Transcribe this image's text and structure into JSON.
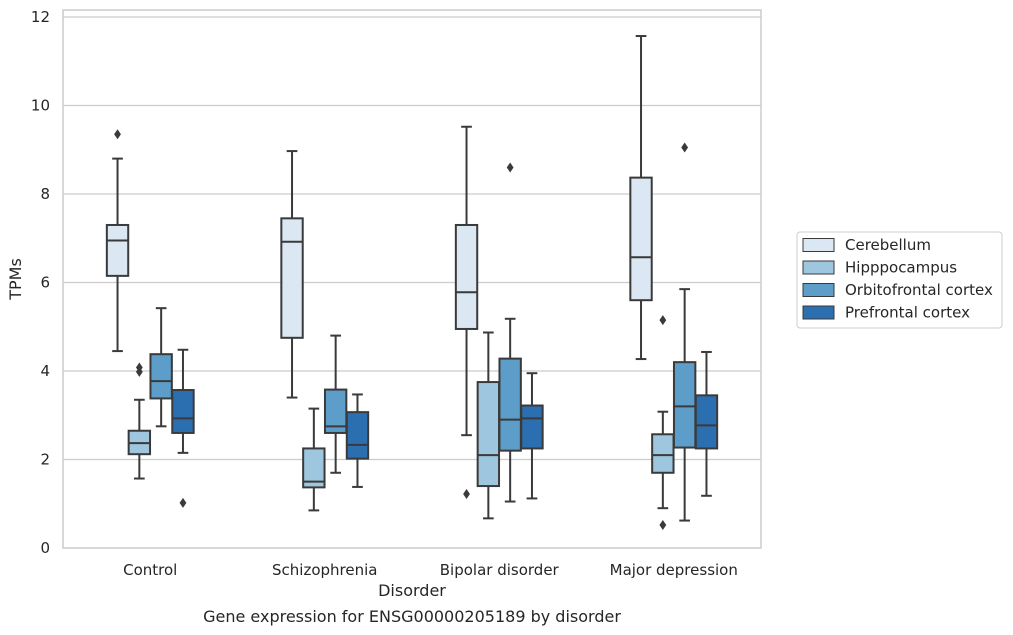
{
  "chart_data": {
    "type": "box",
    "title": "",
    "caption": "Gene expression for ENSG00000205189 by disorder",
    "xlabel": "Disorder",
    "ylabel": "TPMs",
    "ylim": [
      0,
      12.2
    ],
    "yticks": [
      0,
      2,
      4,
      6,
      8,
      10,
      12
    ],
    "grid": true,
    "legend_position": "right",
    "categories": [
      "Control",
      "Schizophrenia",
      "Bipolar disorder",
      "Major depression"
    ],
    "series": [
      {
        "name": "Cerebellum",
        "color": "#dbe7f3",
        "boxes": [
          {
            "whisker_low": 4.45,
            "q1": 6.15,
            "median": 6.95,
            "q3": 7.3,
            "whisker_high": 8.8,
            "outliers": [
              9.35
            ]
          },
          {
            "whisker_low": 3.4,
            "q1": 4.75,
            "median": 6.92,
            "q3": 7.45,
            "whisker_high": 8.97,
            "outliers": []
          },
          {
            "whisker_low": 2.55,
            "q1": 4.95,
            "median": 5.78,
            "q3": 7.3,
            "whisker_high": 9.52,
            "outliers": [
              1.22
            ]
          },
          {
            "whisker_low": 4.27,
            "q1": 5.6,
            "median": 6.57,
            "q3": 8.37,
            "whisker_high": 11.57,
            "outliers": []
          }
        ]
      },
      {
        "name": "Hipppocampus",
        "color": "#9ec6de",
        "boxes": [
          {
            "whisker_low": 1.57,
            "q1": 2.12,
            "median": 2.37,
            "q3": 2.65,
            "whisker_high": 3.35,
            "outliers": [
              3.98,
              4.08
            ]
          },
          {
            "whisker_low": 0.85,
            "q1": 1.37,
            "median": 1.5,
            "q3": 2.25,
            "whisker_high": 3.15,
            "outliers": []
          },
          {
            "whisker_low": 0.67,
            "q1": 1.4,
            "median": 2.1,
            "q3": 3.75,
            "whisker_high": 4.87,
            "outliers": []
          },
          {
            "whisker_low": 0.9,
            "q1": 1.7,
            "median": 2.1,
            "q3": 2.57,
            "whisker_high": 3.08,
            "outliers": [
              0.52,
              5.15
            ]
          }
        ]
      },
      {
        "name": "Orbitofrontal cortex",
        "color": "#5c9ec9",
        "boxes": [
          {
            "whisker_low": 2.75,
            "q1": 3.38,
            "median": 3.77,
            "q3": 4.38,
            "whisker_high": 5.42,
            "outliers": []
          },
          {
            "whisker_low": 1.7,
            "q1": 2.6,
            "median": 2.75,
            "q3": 3.58,
            "whisker_high": 4.8,
            "outliers": []
          },
          {
            "whisker_low": 1.05,
            "q1": 2.2,
            "median": 2.9,
            "q3": 4.28,
            "whisker_high": 5.18,
            "outliers": [
              8.6
            ]
          },
          {
            "whisker_low": 0.62,
            "q1": 2.27,
            "median": 3.2,
            "q3": 4.2,
            "whisker_high": 5.85,
            "outliers": [
              9.05
            ]
          }
        ]
      },
      {
        "name": "Prefrontal cortex",
        "color": "#2c6fb0",
        "boxes": [
          {
            "whisker_low": 2.15,
            "q1": 2.6,
            "median": 2.93,
            "q3": 3.57,
            "whisker_high": 4.48,
            "outliers": [
              1.02
            ]
          },
          {
            "whisker_low": 1.38,
            "q1": 2.02,
            "median": 2.33,
            "q3": 3.07,
            "whisker_high": 3.47,
            "outliers": []
          },
          {
            "whisker_low": 1.12,
            "q1": 2.25,
            "median": 2.93,
            "q3": 3.22,
            "whisker_high": 3.95,
            "outliers": []
          },
          {
            "whisker_low": 1.18,
            "q1": 2.25,
            "median": 2.77,
            "q3": 3.45,
            "whisker_high": 4.43,
            "outliers": []
          }
        ]
      }
    ]
  }
}
